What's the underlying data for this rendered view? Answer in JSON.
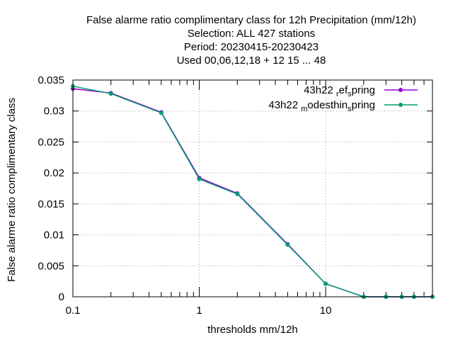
{
  "chart_data": {
    "type": "line",
    "title_lines": [
      "False alarme ratio complimentary class  for 12h Precipitation (mm/12h)",
      "Selection: ALL     427 stations",
      "Period: 20230415-20230423",
      "Used  00,06,12,18  + 12 15 ... 48"
    ],
    "xlabel": "thresholds mm/12h",
    "ylabel": "False alarme ratio complimentary class",
    "x_scale": "log",
    "xlim": [
      0.1,
      70
    ],
    "ylim": [
      0,
      0.035
    ],
    "x_ticks": [
      {
        "value": 0.1,
        "label": "0.1"
      },
      {
        "value": 1,
        "label": "1"
      },
      {
        "value": 10,
        "label": "10"
      }
    ],
    "y_ticks": [
      {
        "value": 0,
        "label": "0"
      },
      {
        "value": 0.005,
        "label": "0.005"
      },
      {
        "value": 0.01,
        "label": "0.01"
      },
      {
        "value": 0.015,
        "label": "0.015"
      },
      {
        "value": 0.02,
        "label": "0.02"
      },
      {
        "value": 0.025,
        "label": "0.025"
      },
      {
        "value": 0.03,
        "label": "0.03"
      },
      {
        "value": 0.035,
        "label": "0.035"
      }
    ],
    "grid": true,
    "legend_position": "top-right",
    "x": [
      0.1,
      0.2,
      0.5,
      1,
      2,
      5,
      10,
      20,
      30,
      40,
      50,
      70
    ],
    "series": [
      {
        "legend_main": "43h22",
        "legend_parts": [
          {
            "text": "r",
            "sub": true
          },
          {
            "text": "ef",
            "sub": false
          },
          {
            "text": "s",
            "sub": true
          },
          {
            "text": "pring",
            "sub": false
          }
        ],
        "color": "#9400d3",
        "values": [
          0.0336,
          0.0329,
          0.0298,
          0.0192,
          0.0167,
          0.0085,
          0.0021,
          0.0,
          0.0,
          0.0,
          0.0,
          0.0
        ]
      },
      {
        "legend_main": "43h22",
        "legend_parts": [
          {
            "text": "m",
            "sub": true
          },
          {
            "text": "odesthin",
            "sub": false
          },
          {
            "text": "s",
            "sub": true
          },
          {
            "text": "pring",
            "sub": false
          }
        ],
        "color": "#009e73",
        "values": [
          0.034,
          0.0328,
          0.0297,
          0.019,
          0.0166,
          0.0084,
          0.0021,
          0.0,
          0.0,
          0.0,
          0.0,
          0.0
        ]
      }
    ]
  }
}
